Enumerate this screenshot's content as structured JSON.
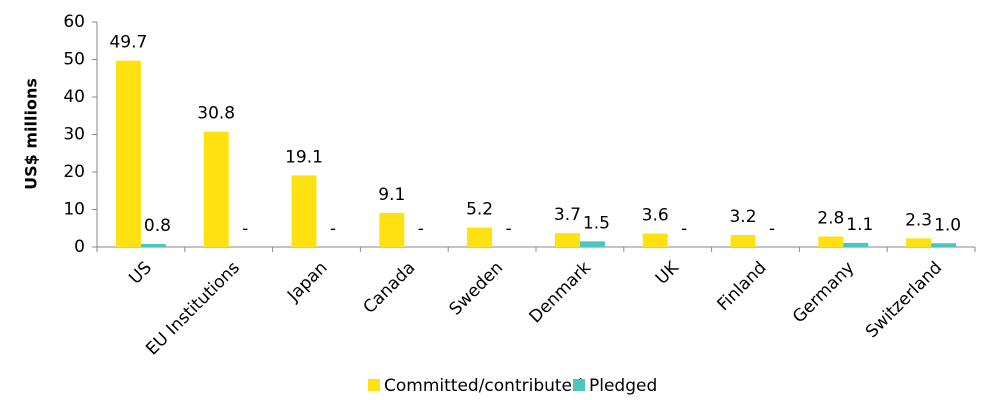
{
  "chart_data": {
    "type": "bar",
    "y_label": "US$ millions",
    "categories": [
      "US",
      "EU Institutions",
      "Japan",
      "Canada",
      "Sweden",
      "Denmark",
      "UK",
      "Finland",
      "Germany",
      "Switzerland"
    ],
    "series": [
      {
        "name": "Committed/contributed",
        "color": "#ffe011",
        "values": [
          49.7,
          30.8,
          19.1,
          9.1,
          5.2,
          3.7,
          3.6,
          3.2,
          2.8,
          2.3
        ]
      },
      {
        "name": "Pledged",
        "color": "#4bc6be",
        "values": [
          0.8,
          0,
          0,
          0,
          0,
          1.5,
          0,
          0,
          1.1,
          1.0
        ],
        "value_labels": [
          "0.8",
          "-",
          "-",
          "-",
          "-",
          "1.5",
          "-",
          "-",
          "1.1",
          "1.0"
        ]
      }
    ],
    "ylim": [
      0,
      60
    ],
    "yticks": [
      0,
      10,
      20,
      30,
      40,
      50,
      60
    ],
    "legend": "bottom"
  }
}
